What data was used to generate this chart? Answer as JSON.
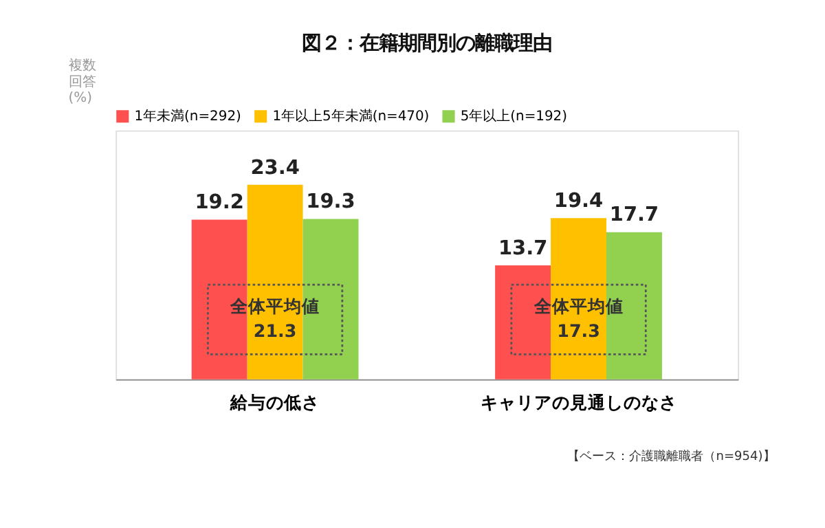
{
  "chart_data": {
    "type": "bar",
    "title": "図２：在籍期間別の離職理由",
    "categories": [
      "給与の低さ",
      "キャリアの見通しのなさ"
    ],
    "series": [
      {
        "name": "1年未満(n=292)",
        "color": "#ff5050",
        "values": [
          19.2,
          13.7
        ]
      },
      {
        "name": "1年以上5年未満(n=470)",
        "color": "#ffc000",
        "values": [
          23.4,
          19.4
        ]
      },
      {
        "name": "5年以上(n=192)",
        "color": "#92d050",
        "values": [
          19.3,
          17.7
        ]
      }
    ],
    "tick_labels": "x",
    "data_labels": true,
    "legend": "top",
    "annotations": [
      "複数回答(%)",
      "全体平均値\n21.3",
      "全体平均値\n17.3",
      "【ベース：介護職離職者（n=954)】"
    ]
  }
}
